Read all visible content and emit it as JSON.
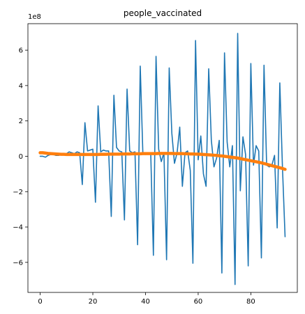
{
  "chart_data": {
    "type": "line",
    "title": "people_vaccinated",
    "xlabel": "",
    "ylabel": "",
    "offset_label": "1e8",
    "xlim": [
      -4.65,
      97.65
    ],
    "ylim": [
      -7.7,
      7.5
    ],
    "xticks": [
      0,
      20,
      40,
      60,
      80
    ],
    "yticks": [
      -6,
      -4,
      -2,
      0,
      2,
      4,
      6
    ],
    "grid": false,
    "legend": "none",
    "series": [
      {
        "color": "#1f77b4",
        "values": [
          0.0,
          0.0,
          -0.05,
          0.05,
          0.1,
          0.1,
          0.05,
          0.05,
          0.1,
          0.1,
          0.15,
          0.25,
          0.2,
          0.15,
          0.25,
          0.2,
          -1.6,
          1.9,
          0.3,
          0.35,
          0.4,
          -2.6,
          2.85,
          0.25,
          0.35,
          0.3,
          0.3,
          -3.4,
          3.45,
          0.5,
          0.3,
          0.25,
          -3.6,
          3.8,
          0.3,
          0.2,
          0.25,
          -5.0,
          5.1,
          0.15,
          0.1,
          0.2,
          0.1,
          -5.6,
          5.65,
          0.4,
          -0.3,
          0.2,
          -5.85,
          5.0,
          1.3,
          -0.4,
          0.2,
          1.65,
          -1.7,
          0.2,
          0.3,
          -0.8,
          -6.05,
          6.55,
          -0.2,
          1.15,
          -1.0,
          -1.7,
          4.95,
          0.9,
          -0.6,
          -0.1,
          0.9,
          -6.6,
          5.85,
          0.8,
          -0.6,
          0.6,
          -7.25,
          6.95,
          -1.95,
          1.1,
          0.1,
          -6.2,
          5.25,
          -0.5,
          0.6,
          0.3,
          -5.75,
          5.15,
          -0.5,
          -0.6,
          -0.5,
          0.05,
          -4.05,
          4.15,
          -0.6,
          -4.55
        ]
      },
      {
        "color": "#ff7f0e",
        "values": [
          0.2,
          0.2,
          0.18,
          0.16,
          0.15,
          0.14,
          0.13,
          0.12,
          0.11,
          0.11,
          0.1,
          0.1,
          0.1,
          0.1,
          0.1,
          0.1,
          0.1,
          0.1,
          0.1,
          0.1,
          0.1,
          0.1,
          0.1,
          0.11,
          0.11,
          0.11,
          0.12,
          0.12,
          0.12,
          0.12,
          0.12,
          0.13,
          0.13,
          0.13,
          0.13,
          0.14,
          0.14,
          0.14,
          0.14,
          0.15,
          0.15,
          0.15,
          0.15,
          0.15,
          0.15,
          0.16,
          0.16,
          0.16,
          0.16,
          0.16,
          0.16,
          0.15,
          0.15,
          0.15,
          0.15,
          0.14,
          0.14,
          0.13,
          0.13,
          0.12,
          0.12,
          0.11,
          0.1,
          0.09,
          0.08,
          0.07,
          0.06,
          0.05,
          0.03,
          0.02,
          0.0,
          -0.02,
          -0.04,
          -0.06,
          -0.08,
          -0.1,
          -0.13,
          -0.16,
          -0.19,
          -0.22,
          -0.25,
          -0.28,
          -0.31,
          -0.34,
          -0.37,
          -0.41,
          -0.45,
          -0.49,
          -0.53,
          -0.57,
          -0.61,
          -0.65,
          -0.69,
          -0.74
        ]
      }
    ]
  }
}
